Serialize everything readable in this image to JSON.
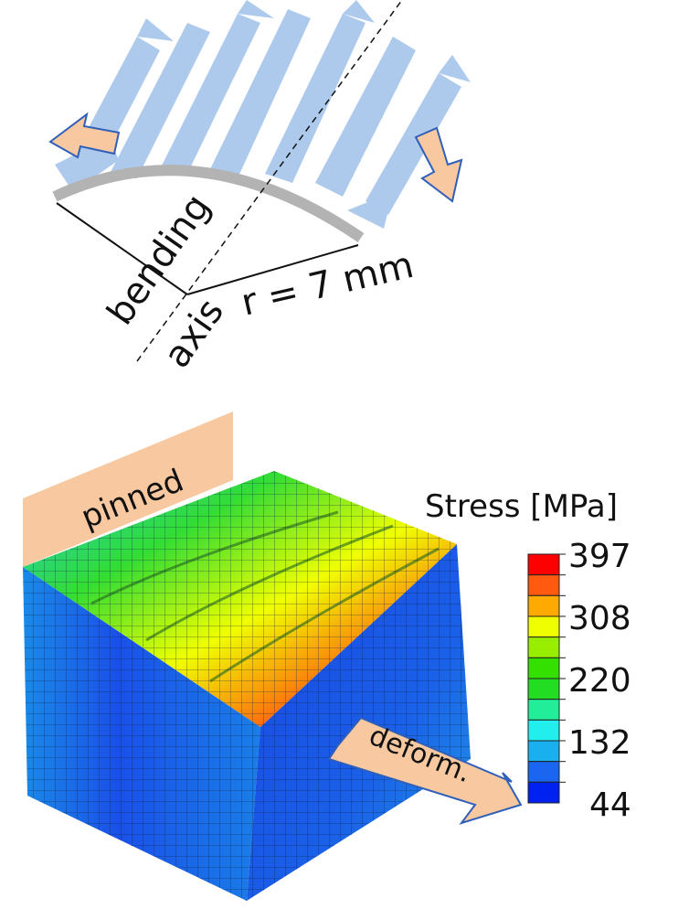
{
  "diagram": {
    "labels": {
      "bending": "bending",
      "axis": "axis",
      "radius": "r = 7 mm",
      "pinned": "pinned",
      "deform": "deform."
    },
    "colors": {
      "load_arrows": "#a9c8ec",
      "orange_arrows": "#f8c9a0",
      "arrow_outline": "#2f5fb8",
      "surface": "#b3b3b3"
    }
  },
  "legend": {
    "title": "Stress [MPa]",
    "ticks": [
      "397",
      "308",
      "220",
      "132",
      "44"
    ],
    "min": 44,
    "max": 397,
    "bands": [
      "#ff0000",
      "#ff5a0f",
      "#ffaa00",
      "#f0ff00",
      "#99ee00",
      "#33e000",
      "#22dd22",
      "#22ee99",
      "#22eeee",
      "#1ab0f0",
      "#1a66f0",
      "#0022f0"
    ]
  }
}
